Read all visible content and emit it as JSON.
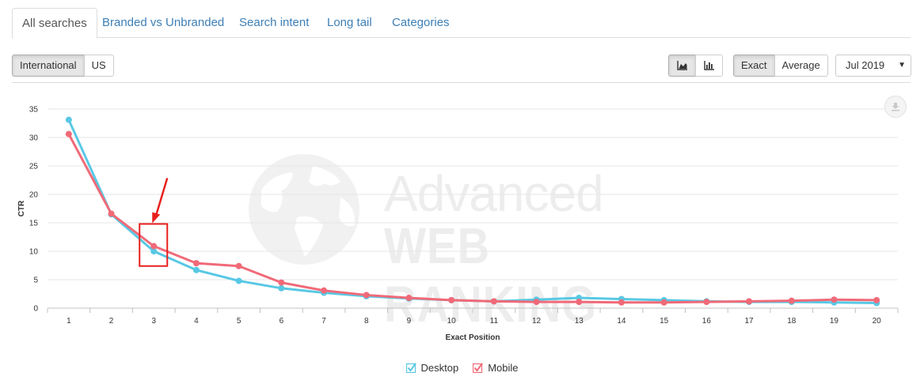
{
  "tabs": [
    {
      "label": "All searches",
      "active": true
    },
    {
      "label": "Branded vs Unbranded"
    },
    {
      "label": "Search intent"
    },
    {
      "label": "Long tail"
    },
    {
      "label": "Categories"
    }
  ],
  "toolbar": {
    "region_international": "International",
    "region_us": "US",
    "area_chart_icon": "area-chart-icon",
    "bar_chart_icon": "bar-chart-icon",
    "exact_label": "Exact",
    "average_label": "Average",
    "month_value": "Jul 2019"
  },
  "watermark": {
    "line1": "Advanced",
    "line2": "WEB RANKING"
  },
  "legend": {
    "desktop": "Desktop",
    "mobile": "Mobile"
  },
  "colors": {
    "desktop": "#58c8e4",
    "mobile": "#f06a78",
    "annotation": "#e8201d",
    "tab_link": "#3d7fb6"
  },
  "chart_data": {
    "type": "line",
    "xlabel": "Exact Position",
    "ylabel": "CTR",
    "x": [
      1,
      2,
      3,
      4,
      5,
      6,
      7,
      8,
      9,
      10,
      11,
      12,
      13,
      14,
      15,
      16,
      17,
      18,
      19,
      20
    ],
    "ylim": [
      0,
      35
    ],
    "yticks": [
      0,
      5,
      10,
      15,
      20,
      25,
      30,
      35
    ],
    "grid": true,
    "legend_position": "bottom",
    "series": [
      {
        "name": "Desktop",
        "values": [
          33.1,
          16.5,
          10.0,
          6.7,
          4.8,
          3.5,
          2.7,
          2.1,
          1.7,
          1.4,
          1.2,
          1.5,
          1.8,
          1.6,
          1.4,
          1.2,
          1.1,
          1.1,
          1.0,
          0.9
        ]
      },
      {
        "name": "Mobile",
        "values": [
          30.6,
          16.6,
          10.9,
          7.9,
          7.4,
          4.5,
          3.1,
          2.3,
          1.8,
          1.4,
          1.2,
          1.1,
          1.1,
          1.0,
          1.0,
          1.1,
          1.2,
          1.3,
          1.5,
          1.4
        ]
      }
    ],
    "annotation": {
      "x": 3,
      "shape": "box-with-arrow"
    }
  }
}
